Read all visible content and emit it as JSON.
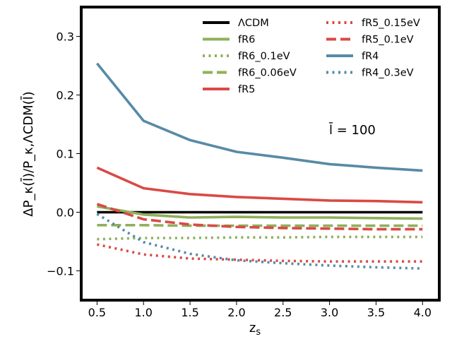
{
  "chart_data": {
    "type": "line",
    "x": [
      0.5,
      1.0,
      1.5,
      2.0,
      2.5,
      3.0,
      3.5,
      4.0
    ],
    "xlim": [
      0.33,
      4.18
    ],
    "ylim": [
      -0.15,
      0.35
    ],
    "xticks": [
      "0.5",
      "1.0",
      "1.5",
      "2.0",
      "2.5",
      "3.0",
      "3.5",
      "4.0"
    ],
    "yticks": [
      "−0.1",
      "0.0",
      "0.1",
      "0.2",
      "0.3"
    ],
    "ytick_values": [
      -0.1,
      0.0,
      0.1,
      0.2,
      0.3
    ],
    "xlabel": "z",
    "xlabel_sub": "s",
    "ylabel": "ΔP_κ(l̄)/P_κ,ΛCDM(l̄)",
    "annotation": "l̄ = 100",
    "legend_location": "top-right",
    "series": [
      {
        "name": "ΛCDM",
        "color": "#000000",
        "style": "solid",
        "values": [
          0.0,
          0.0,
          0.0,
          0.0,
          0.0,
          0.0,
          0.0,
          0.0
        ]
      },
      {
        "name": "fR6",
        "color": "#8fb05a",
        "style": "solid",
        "values": [
          0.01,
          -0.004,
          -0.009,
          -0.008,
          -0.009,
          -0.009,
          -0.01,
          -0.011
        ]
      },
      {
        "name": "fR6_0.1eV",
        "color": "#8fb05a",
        "style": "dotted",
        "values": [
          -0.046,
          -0.044,
          -0.044,
          -0.043,
          -0.043,
          -0.042,
          -0.042,
          -0.042
        ]
      },
      {
        "name": "fR6_0.06eV",
        "color": "#8fb05a",
        "style": "dashed",
        "values": [
          -0.022,
          -0.022,
          -0.023,
          -0.023,
          -0.023,
          -0.023,
          -0.023,
          -0.023
        ]
      },
      {
        "name": "fR5",
        "color": "#d94a46",
        "style": "solid",
        "values": [
          0.076,
          0.041,
          0.031,
          0.026,
          0.023,
          0.02,
          0.019,
          0.017
        ]
      },
      {
        "name": "fR5_0.15eV",
        "color": "#d94a46",
        "style": "dotted",
        "values": [
          -0.055,
          -0.072,
          -0.079,
          -0.081,
          -0.083,
          -0.084,
          -0.084,
          -0.084
        ]
      },
      {
        "name": "fR5_0.1eV",
        "color": "#d94a46",
        "style": "dashed",
        "values": [
          0.014,
          -0.012,
          -0.021,
          -0.025,
          -0.027,
          -0.028,
          -0.029,
          -0.029
        ]
      },
      {
        "name": "fR4",
        "color": "#568ba6",
        "style": "solid",
        "values": [
          0.254,
          0.156,
          0.123,
          0.103,
          0.093,
          0.082,
          0.076,
          0.071
        ]
      },
      {
        "name": "fR4_0.3eV",
        "color": "#568ba6",
        "style": "dotted",
        "values": [
          -0.003,
          -0.051,
          -0.071,
          -0.082,
          -0.087,
          -0.091,
          -0.094,
          -0.096
        ]
      }
    ]
  }
}
